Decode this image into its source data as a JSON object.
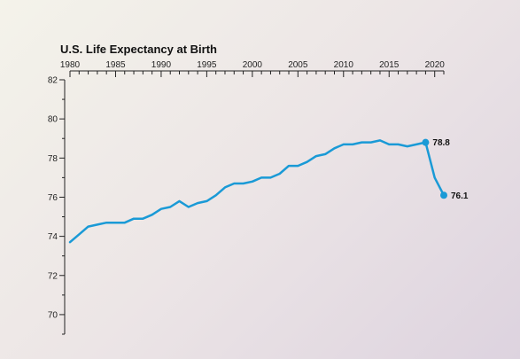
{
  "chart_data": {
    "type": "line",
    "title": "U.S. Life Expectancy at Birth",
    "xlabel": "",
    "ylabel": "",
    "xlim": [
      1980,
      2021
    ],
    "ylim": [
      69,
      82
    ],
    "x_ticks": [
      1980,
      1985,
      1990,
      1995,
      2000,
      2005,
      2010,
      2015,
      2020
    ],
    "y_ticks": [
      70,
      72,
      74,
      76,
      78,
      80,
      82
    ],
    "x_axis_position": "top",
    "grid": false,
    "line_color": "#1a9ad6",
    "series": [
      {
        "x": [
          1980,
          1981,
          1982,
          1983,
          1984,
          1985,
          1986,
          1987,
          1988,
          1989,
          1990,
          1991,
          1992,
          1993,
          1994,
          1995,
          1996,
          1997,
          1998,
          1999,
          2000,
          2001,
          2002,
          2003,
          2004,
          2005,
          2006,
          2007,
          2008,
          2009,
          2010,
          2011,
          2012,
          2013,
          2014,
          2015,
          2016,
          2017,
          2018,
          2019,
          2020,
          2021
        ],
        "values": [
          73.7,
          74.1,
          74.5,
          74.6,
          74.7,
          74.7,
          74.7,
          74.9,
          74.9,
          75.1,
          75.4,
          75.5,
          75.8,
          75.5,
          75.7,
          75.8,
          76.1,
          76.5,
          76.7,
          76.7,
          76.8,
          77.0,
          77.0,
          77.2,
          77.6,
          77.6,
          77.8,
          78.1,
          78.2,
          78.5,
          78.7,
          78.7,
          78.8,
          78.8,
          78.9,
          78.7,
          78.7,
          78.6,
          78.7,
          78.8,
          77.0,
          76.1
        ]
      }
    ],
    "annotations": [
      {
        "x": 2019,
        "y": 78.8,
        "label": "78.8"
      },
      {
        "x": 2021,
        "y": 76.1,
        "label": "76.1"
      }
    ]
  }
}
